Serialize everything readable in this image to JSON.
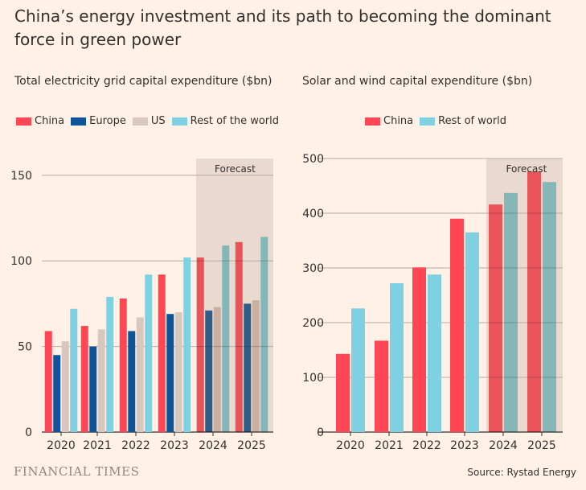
{
  "title": "China’s energy investment and its path to becoming the dominant force in green power",
  "source": "Source: Rystad Energy",
  "brand": "FINANCIAL TIMES",
  "chart_data": [
    {
      "type": "bar",
      "title": "Total electricity grid capital expenditure ($bn)",
      "categories": [
        "2020",
        "2021",
        "2022",
        "2023",
        "2024",
        "2025"
      ],
      "series": [
        {
          "name": "China",
          "color": "#ff4655",
          "values": [
            59,
            62,
            78,
            92,
            102,
            111
          ]
        },
        {
          "name": "Europe",
          "color": "#0f5499",
          "values": [
            45,
            50,
            59,
            69,
            71,
            75
          ]
        },
        {
          "name": "US",
          "color": "#d9c6bd",
          "values": [
            53,
            60,
            67,
            70,
            73,
            77
          ]
        },
        {
          "name": "Rest of the world",
          "color": "#7fd0e0",
          "values": [
            72,
            79,
            92,
            102,
            109,
            114
          ]
        }
      ],
      "ylim": [
        0,
        160
      ],
      "yticks": [
        0,
        50,
        100,
        150
      ],
      "forecast_label": "Forecast",
      "forecast_from": "2024",
      "grid": true,
      "legend": "top"
    },
    {
      "type": "bar",
      "title": "Solar and wind capital expenditure ($bn)",
      "categories": [
        "2020",
        "2021",
        "2022",
        "2023",
        "2024",
        "2025"
      ],
      "series": [
        {
          "name": "China",
          "color": "#ff4655",
          "values": [
            143,
            167,
            301,
            390,
            416,
            476
          ]
        },
        {
          "name": "Rest of world",
          "color": "#7fd0e0",
          "values": [
            226,
            272,
            288,
            365,
            437,
            457
          ]
        }
      ],
      "ylim": [
        0,
        500
      ],
      "yticks": [
        0,
        100,
        200,
        300,
        400,
        500
      ],
      "forecast_label": "Forecast",
      "forecast_from": "2024",
      "grid": true,
      "legend": "top"
    }
  ]
}
